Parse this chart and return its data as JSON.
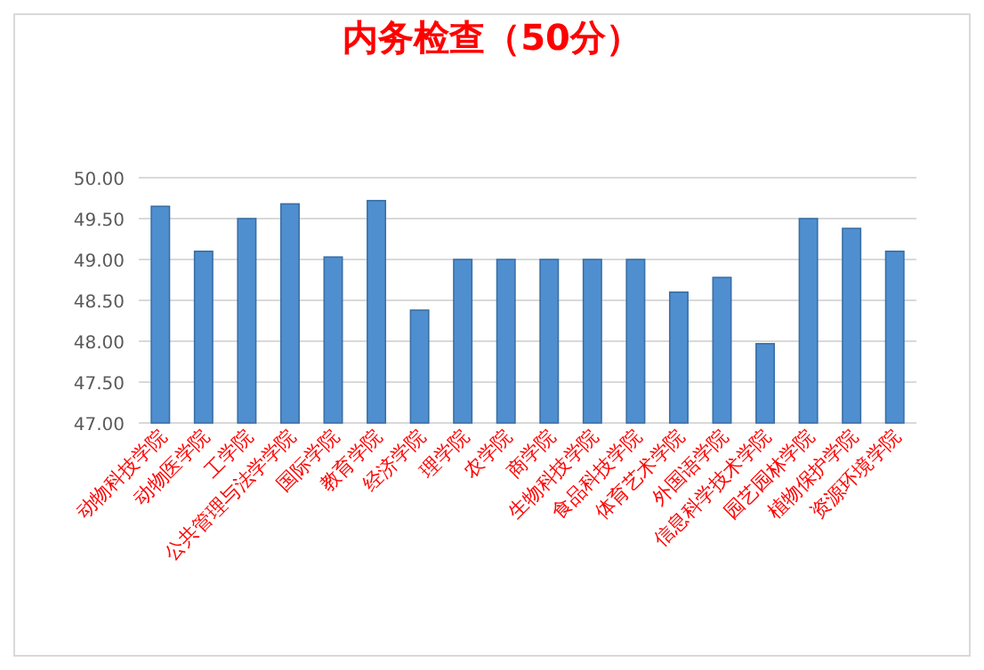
{
  "chart_data": {
    "type": "bar",
    "title": "内务检查（50分）",
    "categories": [
      "动物科技学院",
      "动物医学院",
      "工学院",
      "公共管理与法学学院",
      "国际学院",
      "教育学院",
      "经济学院",
      "理学院",
      "农学院",
      "商学院",
      "生物科技学院",
      "食品科技学院",
      "体育艺术学院",
      "外国语学院",
      "信息科学技术学院",
      "园艺园林学院",
      "植物保护学院",
      "资源环境学院"
    ],
    "values": [
      49.65,
      49.1,
      49.5,
      49.68,
      49.03,
      49.72,
      48.38,
      49.0,
      49.0,
      49.0,
      49.0,
      49.0,
      48.6,
      48.78,
      47.97,
      49.5,
      49.38,
      49.1
    ],
    "color": "#4f8fd0",
    "ylim": [
      47,
      50
    ],
    "yticks": [
      {
        "value": 47,
        "label": "47.00"
      },
      {
        "value": 47.5,
        "label": "47.50"
      },
      {
        "value": 48,
        "label": "48.00"
      },
      {
        "value": 48.5,
        "label": "48.50"
      },
      {
        "value": 49,
        "label": "49.00"
      },
      {
        "value": 49.5,
        "label": "49.50"
      },
      {
        "value": 50,
        "label": "50.00"
      }
    ],
    "grid": "y"
  }
}
